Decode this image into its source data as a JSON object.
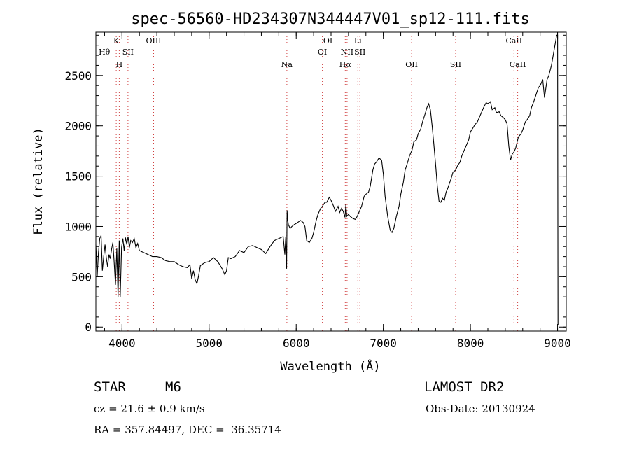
{
  "chart_data": {
    "type": "line",
    "title": "spec-56560-HD234307N344447V01_sp12-111.fits",
    "xlabel": "Wavelength (Å)",
    "ylabel": "Flux (relative)",
    "xlim": [
      3700,
      9100
    ],
    "ylim": [
      -40,
      2930
    ],
    "x_ticks": [
      4000,
      5000,
      6000,
      7000,
      8000,
      9000
    ],
    "y_ticks": [
      0,
      500,
      1000,
      1500,
      2000,
      2500
    ],
    "x_minor_step": 200,
    "y_minor_step": 100,
    "grid": false,
    "series": [
      {
        "x": [
          3700,
          3715,
          3730,
          3745,
          3760,
          3775,
          3790,
          3805,
          3820,
          3835,
          3850,
          3865,
          3880,
          3895,
          3910,
          3925,
          3940,
          3955,
          3968,
          3980,
          3995,
          4010,
          4025,
          4040,
          4055,
          4070,
          4085,
          4100,
          4120,
          4140,
          4160,
          4180,
          4200,
          4250,
          4300,
          4350,
          4400,
          4450,
          4500,
          4550,
          4600,
          4650,
          4700,
          4750,
          4780,
          4800,
          4820,
          4840,
          4860,
          4880,
          4900,
          4950,
          5000,
          5050,
          5100,
          5150,
          5180,
          5200,
          5220,
          5250,
          5300,
          5350,
          5400,
          5450,
          5500,
          5550,
          5600,
          5650,
          5700,
          5750,
          5800,
          5850,
          5870,
          5880,
          5890,
          5895,
          5900,
          5910,
          5930,
          5950,
          5980,
          6000,
          6050,
          6080,
          6100,
          6120,
          6150,
          6180,
          6200,
          6230,
          6250,
          6280,
          6300,
          6330,
          6350,
          6380,
          6400,
          6430,
          6450,
          6480,
          6500,
          6520,
          6540,
          6560,
          6570,
          6580,
          6600,
          6620,
          6650,
          6680,
          6700,
          6720,
          6750,
          6780,
          6800,
          6830,
          6850,
          6880,
          6900,
          6920,
          6950,
          6980,
          7000,
          7020,
          7050,
          7080,
          7100,
          7120,
          7150,
          7180,
          7200,
          7230,
          7250,
          7280,
          7300,
          7330,
          7350,
          7380,
          7400,
          7430,
          7450,
          7480,
          7500,
          7520,
          7540,
          7560,
          7580,
          7600,
          7620,
          7640,
          7660,
          7680,
          7700,
          7720,
          7740,
          7760,
          7780,
          7800,
          7830,
          7850,
          7880,
          7900,
          7930,
          7950,
          7980,
          8000,
          8030,
          8050,
          8080,
          8100,
          8130,
          8150,
          8180,
          8200,
          8230,
          8250,
          8280,
          8300,
          8330,
          8350,
          8380,
          8400,
          8420,
          8440,
          8460,
          8480,
          8500,
          8520,
          8550,
          8580,
          8600,
          8630,
          8650,
          8680,
          8700,
          8730,
          8750,
          8780,
          8800,
          8830,
          8850,
          8880,
          8900,
          8930,
          8950,
          8970,
          8990,
          9000,
          9005,
          9010
        ],
        "values": [
          820,
          500,
          740,
          880,
          910,
          560,
          700,
          820,
          690,
          600,
          720,
          680,
          770,
          840,
          650,
          420,
          780,
          300,
          860,
          300,
          790,
          880,
          760,
          890,
          820,
          900,
          790,
          860,
          840,
          880,
          790,
          830,
          760,
          740,
          720,
          700,
          700,
          690,
          660,
          650,
          650,
          620,
          600,
          590,
          620,
          480,
          560,
          470,
          430,
          510,
          610,
          640,
          650,
          690,
          650,
          580,
          520,
          560,
          690,
          680,
          700,
          760,
          740,
          800,
          810,
          790,
          770,
          730,
          800,
          860,
          880,
          900,
          720,
          900,
          580,
          1160,
          1080,
          1020,
          980,
          1000,
          1020,
          1030,
          1060,
          1040,
          1000,
          860,
          840,
          880,
          940,
          1060,
          1120,
          1180,
          1200,
          1240,
          1240,
          1290,
          1260,
          1200,
          1150,
          1200,
          1140,
          1180,
          1150,
          1090,
          1220,
          1100,
          1120,
          1100,
          1080,
          1070,
          1100,
          1140,
          1200,
          1300,
          1320,
          1340,
          1400,
          1560,
          1620,
          1640,
          1680,
          1660,
          1520,
          1300,
          1100,
          960,
          940,
          980,
          1100,
          1200,
          1320,
          1440,
          1560,
          1640,
          1700,
          1760,
          1840,
          1860,
          1920,
          1970,
          2040,
          2120,
          2180,
          2220,
          2160,
          2000,
          1820,
          1620,
          1400,
          1250,
          1240,
          1280,
          1260,
          1340,
          1380,
          1430,
          1480,
          1540,
          1560,
          1600,
          1640,
          1700,
          1760,
          1800,
          1860,
          1940,
          1980,
          2010,
          2040,
          2080,
          2140,
          2180,
          2230,
          2220,
          2240,
          2160,
          2180,
          2130,
          2140,
          2100,
          2080,
          2060,
          2020,
          1800,
          1660,
          1720,
          1740,
          1780,
          1890,
          1920,
          1960,
          2040,
          2060,
          2100,
          2180,
          2250,
          2300,
          2380,
          2400,
          2460,
          2280,
          2460,
          2500,
          2600,
          2700,
          2800,
          2900,
          2900,
          20,
          20
        ]
      }
    ],
    "annotations": [
      {
        "label": "Hθ",
        "x": 3798,
        "row": 3,
        "dotted": false
      },
      {
        "label": "K",
        "x": 3934,
        "row": 1,
        "dotted": true
      },
      {
        "label": "H",
        "x": 3968,
        "row": 5,
        "dotted": true
      },
      {
        "label": "SII",
        "x": 4069,
        "row": 3,
        "dotted": true
      },
      {
        "label": "OIII",
        "x": 4363,
        "row": 1,
        "dotted": true
      },
      {
        "label": "Na",
        "x": 5893,
        "row": 5,
        "dotted": true
      },
      {
        "label": "OI",
        "x": 6300,
        "row": 3,
        "dotted": true
      },
      {
        "label": "OI",
        "x": 6364,
        "row": 1,
        "dotted": true
      },
      {
        "label": "Hα",
        "x": 6563,
        "row": 5,
        "dotted": true
      },
      {
        "label": "NII",
        "x": 6584,
        "row": 3,
        "dotted": true
      },
      {
        "label": "Li",
        "x": 6708,
        "row": 1,
        "dotted": true
      },
      {
        "label": "SII",
        "x": 6731,
        "row": 3,
        "dotted": true
      },
      {
        "label": "OII",
        "x": 7325,
        "row": 5,
        "dotted": true
      },
      {
        "label": "SII",
        "x": 7830,
        "row": 5,
        "dotted": true
      },
      {
        "label": "CaII",
        "x": 8500,
        "row": 1,
        "dotted": true
      },
      {
        "label": "CaII",
        "x": 8542,
        "row": 5,
        "dotted": true
      }
    ]
  },
  "info": {
    "object_type": "STAR",
    "subclass": "M6",
    "survey": "LAMOST DR2",
    "redshift": "cz = 21.6 ± 0.9 km/s",
    "obs_date": "Obs-Date: 20130924",
    "coords": "RA = 357.84497, DEC =  36.35714"
  }
}
